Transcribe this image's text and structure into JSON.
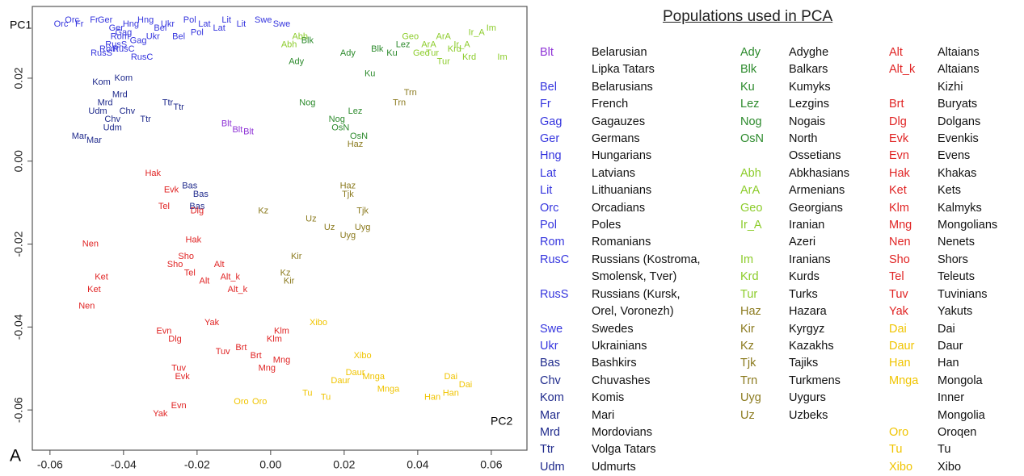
{
  "chart_data": {
    "type": "scatter",
    "title": "Populations used in PCA",
    "panel_label": "A",
    "xlabel": "PC2",
    "ylabel": "PC1",
    "xlim": [
      -0.0648,
      0.0697
    ],
    "ylim": [
      -0.0697,
      0.0373
    ],
    "xticks": [
      -0.06,
      -0.04,
      -0.02,
      {
        "value": 0,
        "label": "0.00"
      },
      0.02,
      0.04,
      0.06
    ],
    "yticks": [
      -0.06,
      -0.04,
      -0.02,
      {
        "value": 0,
        "label": "0.00"
      },
      0.02
    ],
    "series": [
      {
        "name": "Blt",
        "full_name": "Belarusian\nLipka Tatars",
        "color": "#8f33d6",
        "x": [
          -0.012,
          -0.009,
          -0.006
        ],
        "y": [
          0.009,
          0.0075,
          0.007
        ]
      },
      {
        "name": "Bel",
        "full_name": "Belarusians",
        "color": "#3535de",
        "x": [
          -0.03,
          -0.025
        ],
        "y": [
          0.032,
          0.03
        ]
      },
      {
        "name": "Fr",
        "full_name": "French",
        "color": "#3535de",
        "x": [
          -0.052,
          -0.048
        ],
        "y": [
          0.033,
          0.034
        ]
      },
      {
        "name": "Gag",
        "full_name": "Gagauzes",
        "color": "#3535de",
        "x": [
          -0.04,
          -0.036
        ],
        "y": [
          0.031,
          0.029
        ]
      },
      {
        "name": "Ger",
        "full_name": "Germans",
        "color": "#3535de",
        "x": [
          -0.045,
          -0.042
        ],
        "y": [
          0.034,
          0.032
        ]
      },
      {
        "name": "Hng",
        "full_name": "Hungarians",
        "color": "#3535de",
        "x": [
          -0.038,
          -0.034
        ],
        "y": [
          0.033,
          0.034
        ]
      },
      {
        "name": "Lat",
        "full_name": "Latvians",
        "color": "#3535de",
        "x": [
          -0.018,
          -0.014
        ],
        "y": [
          0.033,
          0.032
        ]
      },
      {
        "name": "Lit",
        "full_name": "Lithuanians",
        "color": "#3535de",
        "x": [
          -0.012,
          -0.008
        ],
        "y": [
          0.034,
          0.033
        ]
      },
      {
        "name": "Orc",
        "full_name": "Orcadians",
        "color": "#3535de",
        "x": [
          -0.057,
          -0.054
        ],
        "y": [
          0.033,
          0.034
        ]
      },
      {
        "name": "Pol",
        "full_name": "Poles",
        "color": "#3535de",
        "x": [
          -0.022,
          -0.02
        ],
        "y": [
          0.034,
          0.031
        ]
      },
      {
        "name": "Rom",
        "full_name": "Romanians",
        "color": "#3535de",
        "x": [
          -0.041,
          -0.044
        ],
        "y": [
          0.03,
          0.027
        ]
      },
      {
        "name": "RusC",
        "full_name": "Russians (Kostroma,\nSmolensk, Tver)",
        "color": "#3535de",
        "x": [
          -0.04,
          -0.035
        ],
        "y": [
          0.027,
          0.025
        ]
      },
      {
        "name": "RusS",
        "full_name": "Russians (Kursk,\nOrel, Voronezh)",
        "color": "#3535de",
        "x": [
          -0.046,
          -0.042
        ],
        "y": [
          0.026,
          0.028
        ]
      },
      {
        "name": "Swe",
        "full_name": "Swedes",
        "color": "#3535de",
        "x": [
          -0.002,
          0.003
        ],
        "y": [
          0.034,
          0.033
        ]
      },
      {
        "name": "Ukr",
        "full_name": "Ukrainians",
        "color": "#3535de",
        "x": [
          -0.032,
          -0.028
        ],
        "y": [
          0.03,
          0.033
        ]
      },
      {
        "name": "Bas",
        "full_name": "Bashkirs",
        "color": "#1f2a8c",
        "x": [
          -0.022,
          -0.019,
          -0.02
        ],
        "y": [
          -0.006,
          -0.008,
          -0.011
        ]
      },
      {
        "name": "Chv",
        "full_name": "Chuvashes",
        "color": "#1f2a8c",
        "x": [
          -0.043,
          -0.039
        ],
        "y": [
          0.01,
          0.012
        ]
      },
      {
        "name": "Kom",
        "full_name": "Komis",
        "color": "#1f2a8c",
        "x": [
          -0.046,
          -0.04
        ],
        "y": [
          0.019,
          0.02
        ]
      },
      {
        "name": "Mar",
        "full_name": "Mari",
        "color": "#1f2a8c",
        "x": [
          -0.052,
          -0.048
        ],
        "y": [
          0.006,
          0.005
        ]
      },
      {
        "name": "Mrd",
        "full_name": "Mordovians",
        "color": "#1f2a8c",
        "x": [
          -0.045,
          -0.041
        ],
        "y": [
          0.014,
          0.016
        ]
      },
      {
        "name": "Ttr",
        "full_name": "Volga Tatars",
        "color": "#1f2a8c",
        "x": [
          -0.028,
          -0.025,
          -0.034
        ],
        "y": [
          0.014,
          0.013,
          0.01
        ]
      },
      {
        "name": "Udm",
        "full_name": "Udmurts",
        "color": "#1f2a8c",
        "x": [
          -0.047,
          -0.043
        ],
        "y": [
          0.012,
          0.008
        ]
      },
      {
        "name": "Ady",
        "full_name": "Adyghe",
        "color": "#2c8a2c",
        "x": [
          0.021,
          0.007
        ],
        "y": [
          0.026,
          0.024
        ]
      },
      {
        "name": "Blk",
        "full_name": "Balkars",
        "color": "#2c8a2c",
        "x": [
          0.01,
          0.029
        ],
        "y": [
          0.029,
          0.027
        ]
      },
      {
        "name": "Ku",
        "full_name": "Kumyks",
        "color": "#2c8a2c",
        "x": [
          0.027,
          0.033
        ],
        "y": [
          0.021,
          0.026
        ]
      },
      {
        "name": "Lez",
        "full_name": "Lezgins",
        "color": "#2c8a2c",
        "x": [
          0.023,
          0.036
        ],
        "y": [
          0.012,
          0.028
        ]
      },
      {
        "name": "Nog",
        "full_name": "Nogais",
        "color": "#2c8a2c",
        "x": [
          0.01,
          0.018
        ],
        "y": [
          0.014,
          0.01
        ]
      },
      {
        "name": "OsN",
        "full_name": "North\nOssetians",
        "color": "#2c8a2c",
        "x": [
          0.019,
          0.024
        ],
        "y": [
          0.008,
          0.006
        ]
      },
      {
        "name": "Abh",
        "full_name": "Abkhasians",
        "color": "#8ccc2a",
        "x": [
          0.008,
          0.005
        ],
        "y": [
          0.03,
          0.028
        ]
      },
      {
        "name": "ArA",
        "full_name": "Armenians",
        "color": "#8ccc2a",
        "x": [
          0.043,
          0.047
        ],
        "y": [
          0.028,
          0.03
        ]
      },
      {
        "name": "Geo",
        "full_name": "Georgians",
        "color": "#8ccc2a",
        "x": [
          0.038,
          0.041
        ],
        "y": [
          0.03,
          0.026
        ]
      },
      {
        "name": "Ir_A",
        "full_name": "Iranian\nAzeri",
        "color": "#8ccc2a",
        "x": [
          0.056,
          0.052
        ],
        "y": [
          0.031,
          0.028
        ]
      },
      {
        "name": "Im",
        "full_name": "Iranians",
        "color": "#8ccc2a",
        "x": [
          0.063,
          0.06
        ],
        "y": [
          0.025,
          0.032
        ]
      },
      {
        "name": "Krd",
        "full_name": "Kurds",
        "color": "#8ccc2a",
        "x": [
          0.05,
          0.054
        ],
        "y": [
          0.027,
          0.025
        ]
      },
      {
        "name": "Tur",
        "full_name": "Turks",
        "color": "#8ccc2a",
        "x": [
          0.047,
          0.044
        ],
        "y": [
          0.024,
          0.026
        ]
      },
      {
        "name": "Haz",
        "full_name": "Hazara",
        "color": "#8b7a1e",
        "x": [
          0.023,
          0.021
        ],
        "y": [
          0.004,
          -0.006
        ]
      },
      {
        "name": "Kir",
        "full_name": "Kyrgyz",
        "color": "#8b7a1e",
        "x": [
          0.007,
          0.005
        ],
        "y": [
          -0.023,
          -0.029
        ]
      },
      {
        "name": "Kz",
        "full_name": "Kazakhs",
        "color": "#8b7a1e",
        "x": [
          -0.002,
          0.004
        ],
        "y": [
          -0.012,
          -0.027
        ]
      },
      {
        "name": "Tjk",
        "full_name": "Tajiks",
        "color": "#8b7a1e",
        "x": [
          0.021,
          0.025
        ],
        "y": [
          -0.008,
          -0.012
        ]
      },
      {
        "name": "Trn",
        "full_name": "Turkmens",
        "color": "#8b7a1e",
        "x": [
          0.038,
          0.035
        ],
        "y": [
          0.0165,
          0.014
        ]
      },
      {
        "name": "Uyg",
        "full_name": "Uygurs",
        "color": "#8b7a1e",
        "x": [
          0.025,
          0.021
        ],
        "y": [
          -0.016,
          -0.018
        ]
      },
      {
        "name": "Uz",
        "full_name": "Uzbeks",
        "color": "#8b7a1e",
        "x": [
          0.011,
          0.016
        ],
        "y": [
          -0.014,
          -0.016
        ]
      },
      {
        "name": "Alt",
        "full_name": "Altaians",
        "color": "#e02424",
        "x": [
          -0.014,
          -0.018
        ],
        "y": [
          -0.025,
          -0.029
        ]
      },
      {
        "name": "Alt_k",
        "full_name": "Altaians\nKizhi",
        "color": "#e02424",
        "x": [
          -0.011,
          -0.009
        ],
        "y": [
          -0.028,
          -0.031
        ]
      },
      {
        "name": "Brt",
        "full_name": "Buryats",
        "color": "#e02424",
        "x": [
          -0.008,
          -0.004
        ],
        "y": [
          -0.045,
          -0.047
        ]
      },
      {
        "name": "Dlg",
        "full_name": "Dolgans",
        "color": "#e02424",
        "x": [
          -0.02,
          -0.026
        ],
        "y": [
          -0.012,
          -0.043
        ]
      },
      {
        "name": "Evk",
        "full_name": "Evenkis",
        "color": "#e02424",
        "x": [
          -0.027,
          -0.024
        ],
        "y": [
          -0.007,
          -0.052
        ]
      },
      {
        "name": "Evn",
        "full_name": "Evens",
        "color": "#e02424",
        "x": [
          -0.029,
          -0.025
        ],
        "y": [
          -0.041,
          -0.059
        ]
      },
      {
        "name": "Hak",
        "full_name": "Khakas",
        "color": "#e02424",
        "x": [
          -0.032,
          -0.021
        ],
        "y": [
          -0.003,
          -0.019
        ]
      },
      {
        "name": "Ket",
        "full_name": "Kets",
        "color": "#e02424",
        "x": [
          -0.046,
          -0.048
        ],
        "y": [
          -0.028,
          -0.031
        ]
      },
      {
        "name": "Klm",
        "full_name": "Kalmyks",
        "color": "#e02424",
        "x": [
          0.003,
          0.001
        ],
        "y": [
          -0.041,
          -0.043
        ]
      },
      {
        "name": "Mng",
        "full_name": "Mongolians",
        "color": "#e02424",
        "x": [
          -0.001,
          0.003
        ],
        "y": [
          -0.05,
          -0.048
        ]
      },
      {
        "name": "Nen",
        "full_name": "Nenets",
        "color": "#e02424",
        "x": [
          -0.049,
          -0.05
        ],
        "y": [
          -0.02,
          -0.035
        ]
      },
      {
        "name": "Sho",
        "full_name": "Shors",
        "color": "#e02424",
        "x": [
          -0.023,
          -0.026
        ],
        "y": [
          -0.023,
          -0.025
        ]
      },
      {
        "name": "Tel",
        "full_name": "Teleuts",
        "color": "#e02424",
        "x": [
          -0.029,
          -0.022
        ],
        "y": [
          -0.011,
          -0.027
        ]
      },
      {
        "name": "Tuv",
        "full_name": "Tuvinians",
        "color": "#e02424",
        "x": [
          -0.025,
          -0.013
        ],
        "y": [
          -0.05,
          -0.046
        ]
      },
      {
        "name": "Yak",
        "full_name": "Yakuts",
        "color": "#e02424",
        "x": [
          -0.016,
          -0.03
        ],
        "y": [
          -0.039,
          -0.061
        ]
      },
      {
        "name": "Dai",
        "full_name": "Dai",
        "color": "#f0c400",
        "x": [
          0.053,
          0.049
        ],
        "y": [
          -0.054,
          -0.052
        ]
      },
      {
        "name": "Daur",
        "full_name": "Daur",
        "color": "#f0c400",
        "x": [
          0.019,
          0.023
        ],
        "y": [
          -0.053,
          -0.051
        ]
      },
      {
        "name": "Han",
        "full_name": "Han",
        "color": "#f0c400",
        "x": [
          0.044,
          0.049
        ],
        "y": [
          -0.057,
          -0.056
        ]
      },
      {
        "name": "Mnga",
        "full_name": "Mongola\nInner\nMongolia",
        "color": "#f0c400",
        "x": [
          0.032,
          0.028
        ],
        "y": [
          -0.055,
          -0.052
        ]
      },
      {
        "name": "Oro",
        "full_name": "Oroqen",
        "color": "#f0c400",
        "x": [
          -0.008,
          -0.003
        ],
        "y": [
          -0.058,
          -0.058
        ]
      },
      {
        "name": "Tu",
        "full_name": "Tu",
        "color": "#f0c400",
        "x": [
          0.01,
          0.015
        ],
        "y": [
          -0.056,
          -0.057
        ]
      },
      {
        "name": "Xibo",
        "full_name": "Xibo",
        "color": "#f0c400",
        "x": [
          0.025,
          0.013
        ],
        "y": [
          -0.047,
          -0.039
        ]
      }
    ]
  }
}
